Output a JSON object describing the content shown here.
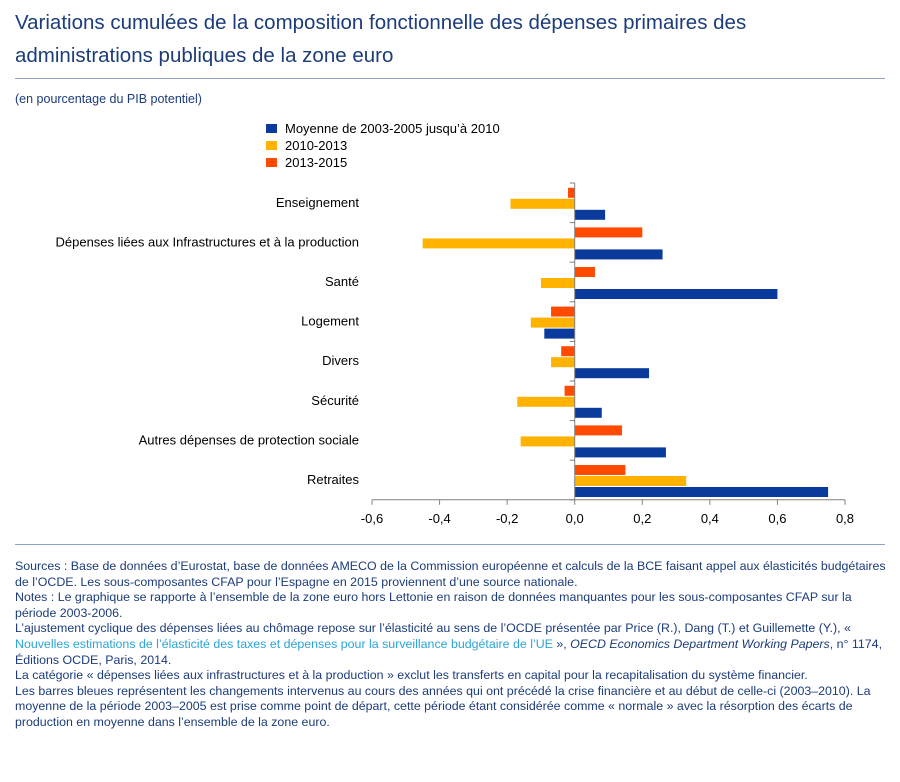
{
  "title": "Variations cumulées de la composition fonctionnelle des dépenses primaires des administrations publiques de la zone euro",
  "subtitle": "(en pourcentage du PIB potentiel)",
  "chart_data": {
    "type": "bar",
    "orientation": "horizontal",
    "categories": [
      "Enseignement",
      "Dépenses liées aux Infrastructures et à la production",
      "Santé",
      "Logement",
      "Divers",
      "Sécurité",
      "Autres dépenses de protection sociale",
      "Retraites"
    ],
    "series": [
      {
        "name": "Moyenne de 2003-2005 jusqu’à 2010",
        "color": "#0a3a9c",
        "values": [
          0.09,
          0.26,
          0.6,
          -0.09,
          0.22,
          0.08,
          0.27,
          0.75
        ]
      },
      {
        "name": "2010-2013",
        "color": "#ffb300",
        "values": [
          -0.19,
          -0.45,
          -0.1,
          -0.13,
          -0.07,
          -0.17,
          -0.16,
          0.33
        ]
      },
      {
        "name": "2013-2015",
        "color": "#ff4a00",
        "values": [
          -0.02,
          0.2,
          0.06,
          -0.07,
          -0.04,
          -0.03,
          0.14,
          0.15
        ]
      }
    ],
    "xlim": [
      -0.6,
      0.8
    ],
    "xticks": [
      "-0,6",
      "-0,4",
      "-0,2",
      "0,0",
      "0,2",
      "0,4",
      "0,6",
      "0,8"
    ],
    "xtick_values": [
      -0.6,
      -0.4,
      -0.2,
      0.0,
      0.2,
      0.4,
      0.6,
      0.8
    ],
    "legend_position": "top",
    "grid": false
  },
  "notes": {
    "sources": "Sources : Base de données d’Eurostat, base de données AMECO de la Commission européenne et calculs de la BCE faisant appel aux élasticités budgétaires de l’OCDE. Les sous-composantes CFAP pour l’Espagne en 2015 proviennent d’une source nationale.",
    "notes": "Notes : Le graphique se rapporte à l’ensemble de la zone euro hors Lettonie en raison de données manquantes pour les sous-composantes CFAP sur la période 2003-2006.",
    "ajustement_pre": "L’ajustement cyclique des dépenses liées au chômage repose sur l’élasticité au sens de l’OCDE présentée par Price (R.), Dang (T.) et Guillemette (Y.), «",
    "ajustement_link": " Nouvelles estimations de l’élasticité des taxes et dépenses pour la surveillance budgétaire de l’UE ",
    "ajustement_mid": "», ",
    "ajustement_italic": "OECD Economics Department Working Papers",
    "ajustement_post": ", n° 1174, Éditions OCDE, Paris, 2014.",
    "categorie": "La catégorie « dépenses liées aux infrastructures et à la production » exclut les transferts en capital pour la recapitalisation du système financier.",
    "barres": "Les barres bleues représentent les changements intervenus au cours des années qui ont précédé la crise financière et au début de celle-ci (2003–2010). La moyenne de la période 2003–2005 est prise comme point de départ, cette période étant considérée comme « normale » avec la résorption des écarts de production en moyenne dans l’ensemble de la zone euro."
  }
}
